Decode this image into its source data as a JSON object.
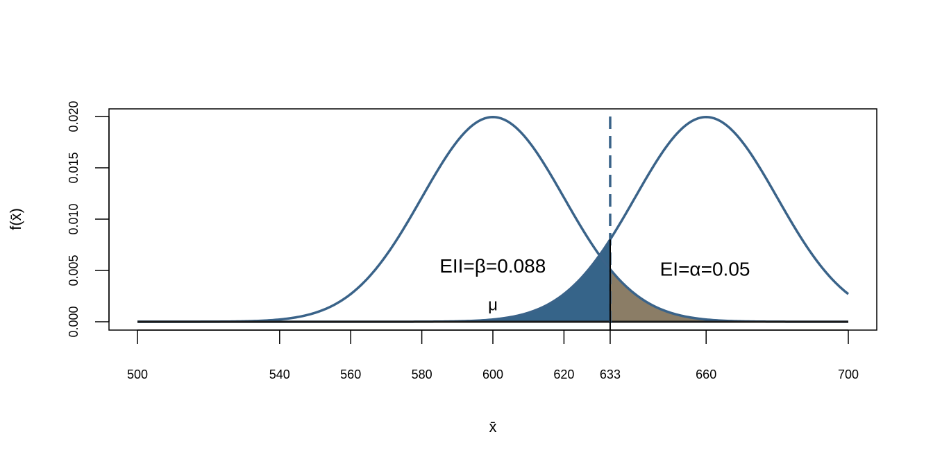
{
  "chart_data": {
    "type": "line",
    "xlabel": "x̄",
    "ylabel": "f(x̄)",
    "xlim": [
      500,
      700
    ],
    "ylim": [
      0,
      0.02
    ],
    "x_ticks": [
      500,
      540,
      560,
      580,
      600,
      620,
      633,
      660,
      700
    ],
    "x_tick_labels": [
      "500",
      "540",
      "560",
      "580",
      "600",
      "620",
      "633",
      "660",
      "700"
    ],
    "y_ticks": [
      0,
      0.005,
      0.01,
      0.015,
      0.02
    ],
    "y_tick_labels": [
      "0.000",
      "0.005",
      "0.010",
      "0.015",
      "0.020"
    ],
    "grid": false,
    "legend": "none",
    "series": [
      {
        "mean": 600,
        "sd": 20,
        "color": "#3a6389"
      },
      {
        "mean": 660,
        "sd": 20,
        "color": "#3a6389"
      }
    ],
    "critical_value": 633,
    "shaded_regions": [
      {
        "label": "EII=β=0.088",
        "from": 500,
        "to": 633,
        "curve_mean": 660,
        "color": "#366489"
      },
      {
        "label": "EI=α=0.05",
        "from": 633,
        "to": 700,
        "curve_mean": 600,
        "color": "#8b7d66"
      }
    ],
    "annotations": [
      {
        "text": "EII=β=0.088",
        "x": 585,
        "y": 0.0048
      },
      {
        "text": "EI=α=0.05",
        "x": 647,
        "y": 0.0045
      },
      {
        "text": "μ",
        "x": 600,
        "y": 0.0011
      }
    ]
  }
}
